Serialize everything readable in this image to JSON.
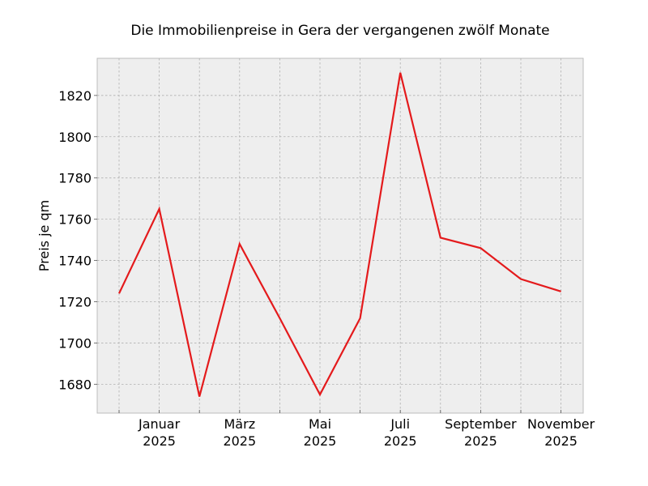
{
  "chart_data": {
    "type": "line",
    "title": "Die Immobilienpreise in Gera der vergangenen zwölf Monate",
    "xlabel": "",
    "ylabel": "Preis je qm",
    "x": [
      "2024-12",
      "2025-01",
      "2025-02",
      "2025-03",
      "2025-04",
      "2025-05",
      "2025-06",
      "2025-07",
      "2025-08",
      "2025-09",
      "2025-10",
      "2025-11"
    ],
    "x_tick_labels": [
      {
        "x": "2025-01",
        "month": "Januar",
        "year": "2025"
      },
      {
        "x": "2025-03",
        "month": "März",
        "year": "2025"
      },
      {
        "x": "2025-05",
        "month": "Mai",
        "year": "2025"
      },
      {
        "x": "2025-07",
        "month": "Juli",
        "year": "2025"
      },
      {
        "x": "2025-09",
        "month": "September",
        "year": "2025"
      },
      {
        "x": "2025-11",
        "month": "November",
        "year": "2025"
      }
    ],
    "series": [
      {
        "values": [
          1724,
          1765,
          1674,
          1748,
          1712,
          1675,
          1712,
          1831,
          1751,
          1746,
          1731,
          1725
        ],
        "color": "#e41a1c"
      }
    ],
    "ylim": [
      1666,
      1838
    ],
    "y_ticks": [
      1680,
      1700,
      1720,
      1740,
      1760,
      1780,
      1800,
      1820
    ],
    "grid": true,
    "background": "#eeeeee"
  }
}
